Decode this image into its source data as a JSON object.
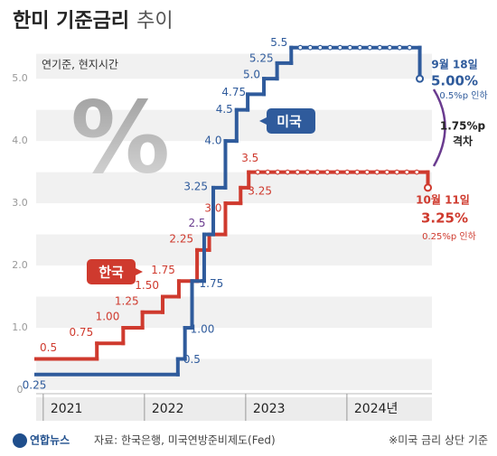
{
  "chart_data": {
    "type": "line",
    "step": true,
    "title": "한미 기준금리",
    "title_suffix": "추이",
    "note": "연기준, 현지시간",
    "watermark": "%",
    "xlim": [
      2020.93,
      2024.84
    ],
    "xticks": [
      2021,
      2022,
      2023,
      {
        "value": 2024,
        "label": "2024년"
      }
    ],
    "ylim": [
      0,
      5.8
    ],
    "yticks": [
      0,
      {
        "value": 1,
        "label": "1.0"
      },
      {
        "value": 2,
        "label": "2.0"
      },
      {
        "value": 3,
        "label": "3.0"
      },
      {
        "value": 4,
        "label": "4.0"
      },
      {
        "value": 5,
        "label": "5.0"
      }
    ],
    "series": [
      {
        "name": "한국",
        "color": "#cf3a2e",
        "x": [
          2020.93,
          2021.53,
          2021.79,
          2021.98,
          2022.18,
          2022.34,
          2022.52,
          2022.64,
          2022.8,
          2022.95,
          2023.03,
          2024.8
        ],
        "values": [
          0.5,
          0.75,
          1,
          1.25,
          1.5,
          1.75,
          2.25,
          2.5,
          3,
          3.25,
          3.5,
          3.25
        ],
        "value_labels": [
          "0.5",
          "0.75",
          "1.00",
          "1.25",
          "1.50",
          "1.75",
          "2.25",
          "2.5",
          "3.0",
          "3.25",
          "3.5",
          "3.25%"
        ]
      },
      {
        "name": "미국",
        "color": "#2f5b9c",
        "x": [
          2020.93,
          2022.33,
          2022.4,
          2022.47,
          2022.59,
          2022.68,
          2022.8,
          2022.91,
          2023.02,
          2023.18,
          2023.31,
          2023.45,
          2024.72
        ],
        "values": [
          0.25,
          0.5,
          1,
          1.75,
          2.5,
          3.25,
          4,
          4.5,
          4.75,
          5,
          5.25,
          5.5,
          5
        ],
        "value_labels": [
          "0.25",
          "0.5",
          "1.00",
          "1.75",
          null,
          "3.25",
          "4.0",
          "4.5",
          "4.75",
          "5.0",
          "5.25",
          "5.5",
          "5.00%"
        ]
      }
    ],
    "annotations": {
      "us_date": "9월 18일",
      "us_change": "0.5%p 인하",
      "kr_date": "10월 11일",
      "kr_change": "0.25%p 인하",
      "gap": "1.75%p",
      "gap_label": "격차"
    },
    "source": "자료: 한국은행, 미국연방준비제도(Fed)",
    "footnote": "※미국 금리 상단 기준",
    "logo": "연합뉴스"
  }
}
